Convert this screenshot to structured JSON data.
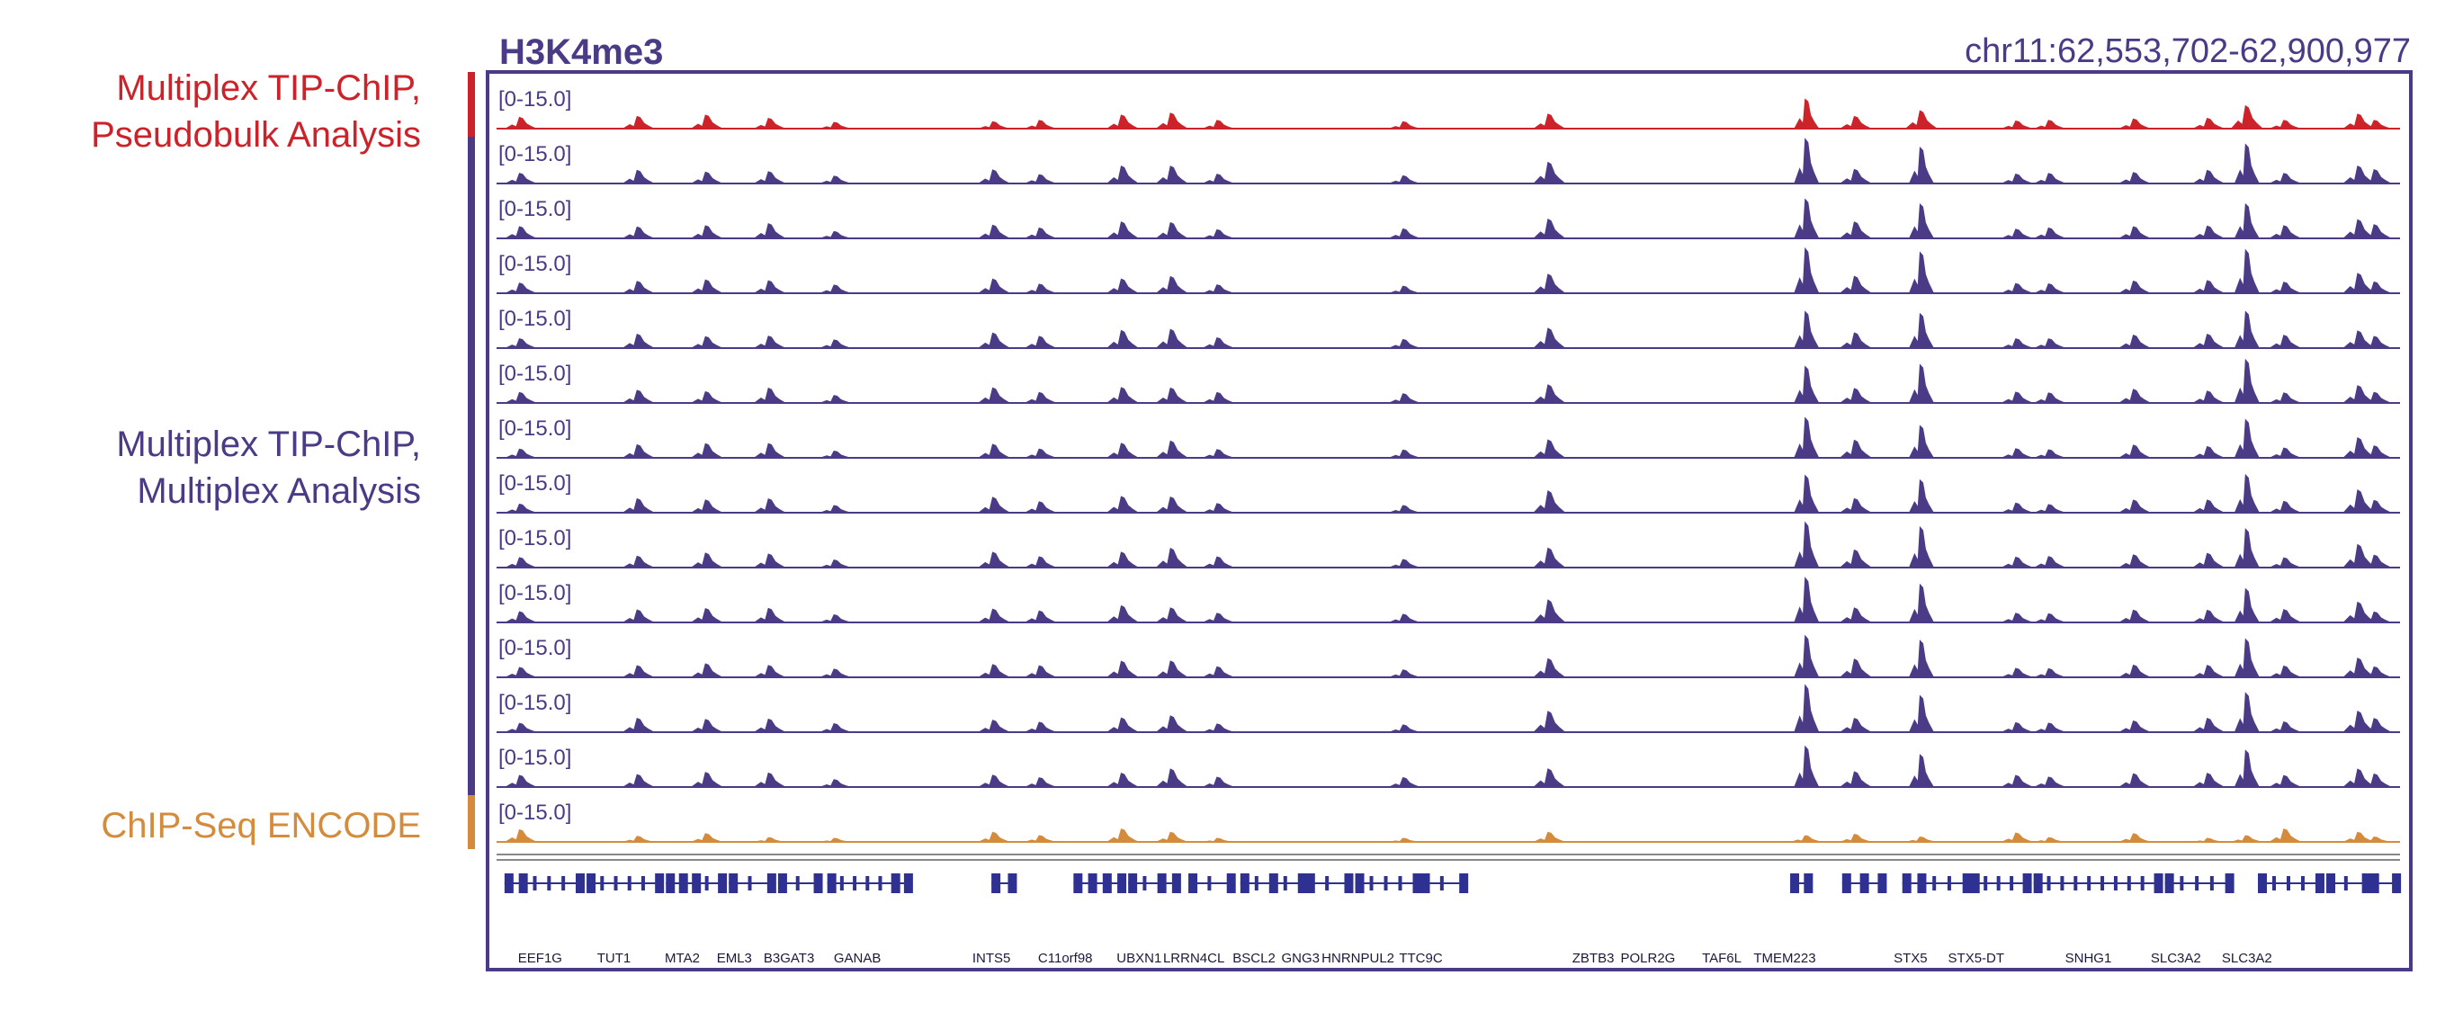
{
  "figure": {
    "title": "H3K4me3",
    "locus": "chr11:62,553,702-62,900,977",
    "groups": [
      {
        "label_lines": [
          "Multiplex TIP-ChIP,",
          "Pseudobulk Analysis"
        ],
        "color": "#cc2229"
      },
      {
        "label_lines": [
          "Multiplex TIP-ChIP,",
          "Multiplex Analysis"
        ],
        "color": "#4b3a85"
      },
      {
        "label_lines": [
          "ChIP-Seq ENCODE"
        ],
        "color": "#d48b3c"
      }
    ]
  },
  "chart_data": {
    "type": "area",
    "title": "H3K4me3",
    "locus": "chr11:62,553,702-62,900,977",
    "x_range": [
      62553702,
      62900977
    ],
    "data_range_label": "[0-15.0]",
    "ylim": [
      0,
      15
    ],
    "track_colors": {
      "pseudobulk": "#cc2229",
      "multiplex": "#4b3a85",
      "encode": "#d48b3c",
      "gene": "#2e3192"
    },
    "tracks": [
      {
        "group": "pseudobulk",
        "range_label": "[0-15.0]"
      },
      {
        "group": "multiplex",
        "range_label": "[0-15.0]"
      },
      {
        "group": "multiplex",
        "range_label": "[0-15.0]"
      },
      {
        "group": "multiplex",
        "range_label": "[0-15.0]"
      },
      {
        "group": "multiplex",
        "range_label": "[0-15.0]"
      },
      {
        "group": "multiplex",
        "range_label": "[0-15.0]"
      },
      {
        "group": "multiplex",
        "range_label": "[0-15.0]"
      },
      {
        "group": "multiplex",
        "range_label": "[0-15.0]"
      },
      {
        "group": "multiplex",
        "range_label": "[0-15.0]"
      },
      {
        "group": "multiplex",
        "range_label": "[0-15.0]"
      },
      {
        "group": "multiplex",
        "range_label": "[0-15.0]"
      },
      {
        "group": "multiplex",
        "range_label": "[0-15.0]"
      },
      {
        "group": "multiplex",
        "range_label": "[0-15.0]"
      },
      {
        "group": "encode",
        "range_label": "[0-15.0]"
      }
    ],
    "peaks": {
      "pseudobulk": [
        {
          "x": 62557500,
          "h": 3.5
        },
        {
          "x": 62579000,
          "h": 3.8
        },
        {
          "x": 62591500,
          "h": 4.2
        },
        {
          "x": 62603000,
          "h": 3.2
        },
        {
          "x": 62615000,
          "h": 2.0
        },
        {
          "x": 62644000,
          "h": 2.2
        },
        {
          "x": 62652500,
          "h": 2.6
        },
        {
          "x": 62667500,
          "h": 4.2
        },
        {
          "x": 62676500,
          "h": 4.8
        },
        {
          "x": 62685000,
          "h": 2.6
        },
        {
          "x": 62719000,
          "h": 2.2
        },
        {
          "x": 62745500,
          "h": 4.5
        },
        {
          "x": 62792500,
          "h": 9.0
        },
        {
          "x": 62801500,
          "h": 3.8
        },
        {
          "x": 62813500,
          "h": 5.5
        },
        {
          "x": 62831000,
          "h": 2.4
        },
        {
          "x": 62837000,
          "h": 2.6
        },
        {
          "x": 62852500,
          "h": 3.0
        },
        {
          "x": 62866000,
          "h": 3.2
        },
        {
          "x": 62873000,
          "h": 7.0
        },
        {
          "x": 62880000,
          "h": 2.6
        },
        {
          "x": 62893500,
          "h": 4.5
        },
        {
          "x": 62896500,
          "h": 2.6
        }
      ],
      "multiplex": [
        {
          "x": 62557500,
          "h": 3.2
        },
        {
          "x": 62579000,
          "h": 4.0
        },
        {
          "x": 62591500,
          "h": 4.0
        },
        {
          "x": 62603000,
          "h": 4.0
        },
        {
          "x": 62615000,
          "h": 2.4
        },
        {
          "x": 62644000,
          "h": 4.2
        },
        {
          "x": 62652500,
          "h": 3.2
        },
        {
          "x": 62667500,
          "h": 4.8
        },
        {
          "x": 62676500,
          "h": 5.2
        },
        {
          "x": 62685000,
          "h": 3.0
        },
        {
          "x": 62719000,
          "h": 2.6
        },
        {
          "x": 62745500,
          "h": 6.0
        },
        {
          "x": 62792500,
          "h": 13.0
        },
        {
          "x": 62801500,
          "h": 5.0
        },
        {
          "x": 62813500,
          "h": 11.0
        },
        {
          "x": 62831000,
          "h": 3.2
        },
        {
          "x": 62837000,
          "h": 3.0
        },
        {
          "x": 62852500,
          "h": 3.8
        },
        {
          "x": 62866000,
          "h": 4.0
        },
        {
          "x": 62873000,
          "h": 12.0
        },
        {
          "x": 62880000,
          "h": 3.5
        },
        {
          "x": 62893500,
          "h": 6.2
        },
        {
          "x": 62896500,
          "h": 3.8
        }
      ],
      "encode": [
        {
          "x": 62557500,
          "h": 3.8
        },
        {
          "x": 62579000,
          "h": 1.8
        },
        {
          "x": 62591500,
          "h": 2.6
        },
        {
          "x": 62603000,
          "h": 1.4
        },
        {
          "x": 62615000,
          "h": 1.2
        },
        {
          "x": 62644000,
          "h": 3.0
        },
        {
          "x": 62652500,
          "h": 2.0
        },
        {
          "x": 62667500,
          "h": 4.0
        },
        {
          "x": 62676500,
          "h": 3.0
        },
        {
          "x": 62685000,
          "h": 1.2
        },
        {
          "x": 62719000,
          "h": 1.2
        },
        {
          "x": 62745500,
          "h": 3.0
        },
        {
          "x": 62792500,
          "h": 2.0
        },
        {
          "x": 62801500,
          "h": 2.4
        },
        {
          "x": 62813500,
          "h": 1.6
        },
        {
          "x": 62831000,
          "h": 2.8
        },
        {
          "x": 62837000,
          "h": 1.4
        },
        {
          "x": 62852500,
          "h": 2.6
        },
        {
          "x": 62866000,
          "h": 1.2
        },
        {
          "x": 62873000,
          "h": 2.0
        },
        {
          "x": 62880000,
          "h": 4.0
        },
        {
          "x": 62893500,
          "h": 3.0
        },
        {
          "x": 62896500,
          "h": 1.6
        }
      ]
    },
    "genes": [
      {
        "name": "EEF1G",
        "start": 62554500,
        "end": 62568500
      },
      {
        "name": "TUT1",
        "start": 62569500,
        "end": 62583000
      },
      {
        "name": "MTA2",
        "start": 62584000,
        "end": 62594500
      },
      {
        "name": "EML3",
        "start": 62595500,
        "end": 62603500
      },
      {
        "name": "B3GAT3",
        "start": 62604500,
        "end": 62612000
      },
      {
        "name": "GANAB",
        "start": 62613500,
        "end": 62628500
      },
      {
        "name": "INTS5",
        "start": 62643500,
        "end": 62647500
      },
      {
        "name": "C11orf98",
        "start": 62658500,
        "end": 62667500
      },
      {
        "name": "UBXN1",
        "start": 62668500,
        "end": 62677500
      },
      {
        "name": "LRRN4CL",
        "start": 62679500,
        "end": 62687500
      },
      {
        "name": "BSCL2",
        "start": 62689000,
        "end": 62700500
      },
      {
        "name": "GNG3",
        "start": 62701000,
        "end": 62709000
      },
      {
        "name": "HNRNPUL2",
        "start": 62710000,
        "end": 62721500
      },
      {
        "name": "TTC9C",
        "start": 62722000,
        "end": 62730000
      },
      {
        "name": "ZBTB3",
        "start": 62789500,
        "end": 62793000
      },
      {
        "name": "POLR2G",
        "start": 62799000,
        "end": 62806500
      },
      {
        "name": "TAF6L",
        "start": 62810000,
        "end": 62822000
      },
      {
        "name": "TMEM223",
        "start": 62822500,
        "end": 62833000
      },
      {
        "name": "STX5",
        "start": 62834000,
        "end": 62857000
      },
      {
        "name": "STX5-DT",
        "start": 62858000,
        "end": 62870000
      },
      {
        "name": "SNHG1",
        "start": 62875000,
        "end": 62886500
      },
      {
        "name": "SLC3A2",
        "start": 62887500,
        "end": 62895000
      },
      {
        "name": "SLC3A2",
        "start": 62895500,
        "end": 62900500
      }
    ],
    "gene_labels": [
      {
        "name": "EEF1G",
        "x": 62561000
      },
      {
        "name": "TUT1",
        "x": 62574500
      },
      {
        "name": "MTA2",
        "x": 62587000
      },
      {
        "name": "EML3",
        "x": 62596500
      },
      {
        "name": "B3GAT3",
        "x": 62606500
      },
      {
        "name": "GANAB",
        "x": 62619000
      },
      {
        "name": "INTS5",
        "x": 62643500
      },
      {
        "name": "C11orf98",
        "x": 62657000
      },
      {
        "name": "UBXN1",
        "x": 62670500
      },
      {
        "name": "LRRN4CL",
        "x": 62680500
      },
      {
        "name": "BSCL2",
        "x": 62691500
      },
      {
        "name": "GNG3",
        "x": 62700000
      },
      {
        "name": "HNRNPUL2",
        "x": 62710500
      },
      {
        "name": "TTC9C",
        "x": 62722000
      },
      {
        "name": "ZBTB3",
        "x": 62753500
      },
      {
        "name": "POLR2G",
        "x": 62763500
      },
      {
        "name": "TAF6L",
        "x": 62777000
      },
      {
        "name": "TMEM223",
        "x": 62788500
      },
      {
        "name": "STX5",
        "x": 62811500
      },
      {
        "name": "STX5-DT",
        "x": 62823500
      },
      {
        "name": "SNHG1",
        "x": 62844000
      },
      {
        "name": "SLC3A2",
        "x": 62860000
      },
      {
        "name": "SLC3A2",
        "x": 62873000
      }
    ]
  }
}
